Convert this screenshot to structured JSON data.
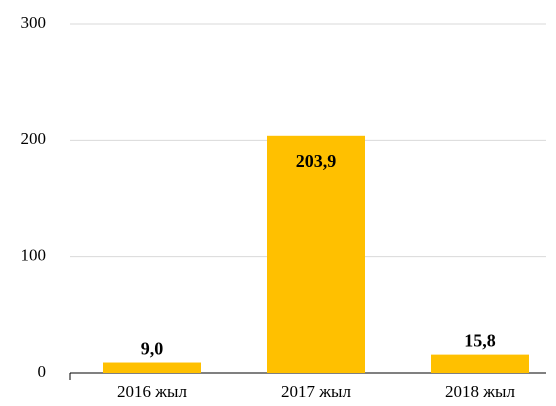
{
  "chart_data": {
    "type": "bar",
    "categories": [
      "2016 жыл",
      "2017 жыл",
      "2018 жыл"
    ],
    "values": [
      9.0,
      203.9,
      15.8
    ],
    "value_labels": [
      "9,0",
      "203,9",
      "15,8"
    ],
    "color": "#ffc000",
    "ylim": [
      0,
      300
    ],
    "yticks": [
      0,
      100,
      200,
      300
    ],
    "grid": true
  }
}
